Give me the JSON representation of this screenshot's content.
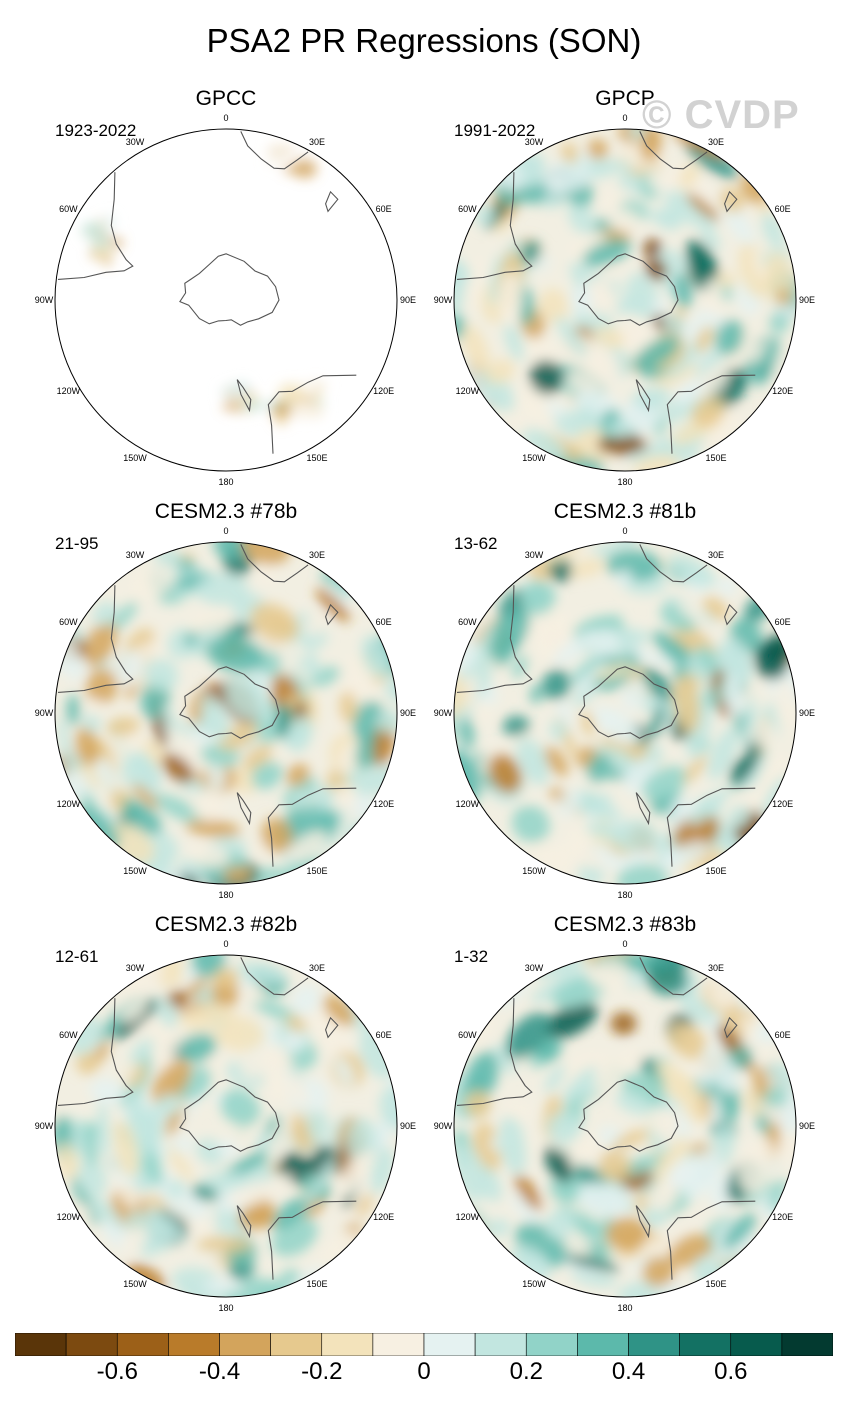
{
  "title": "PSA2 PR Regressions (SON)",
  "watermark": "© CVDP",
  "lon_labels": [
    "0",
    "30E",
    "60E",
    "90E",
    "120E",
    "150E",
    "180",
    "150W",
    "120W",
    "90W",
    "60W",
    "30W"
  ],
  "panels": [
    {
      "title": "GPCC",
      "period": "1923-2022",
      "coverage": "land-only"
    },
    {
      "title": "GPCP",
      "period": "1991-2022",
      "coverage": "global"
    },
    {
      "title": "CESM2.3 #78b",
      "period": "21-95",
      "coverage": "global"
    },
    {
      "title": "CESM2.3 #81b",
      "period": "13-62",
      "coverage": "global"
    },
    {
      "title": "CESM2.3 #82b",
      "period": "12-61",
      "coverage": "global"
    },
    {
      "title": "CESM2.3 #83b",
      "period": "1-32",
      "coverage": "global"
    }
  ],
  "colorbar": {
    "labels": [
      "-0.6",
      "-0.4",
      "-0.2",
      "0",
      "0.2",
      "0.4",
      "0.6"
    ],
    "colors": [
      "#5a3509",
      "#7c4a10",
      "#9c6018",
      "#b97b2a",
      "#d3a45c",
      "#e6c98e",
      "#f3e3bb",
      "#f7f0e2",
      "#e5f2f1",
      "#c2e6e0",
      "#91d3c8",
      "#5cb9ab",
      "#2f9386",
      "#137163",
      "#075b4d",
      "#033a30"
    ]
  }
}
